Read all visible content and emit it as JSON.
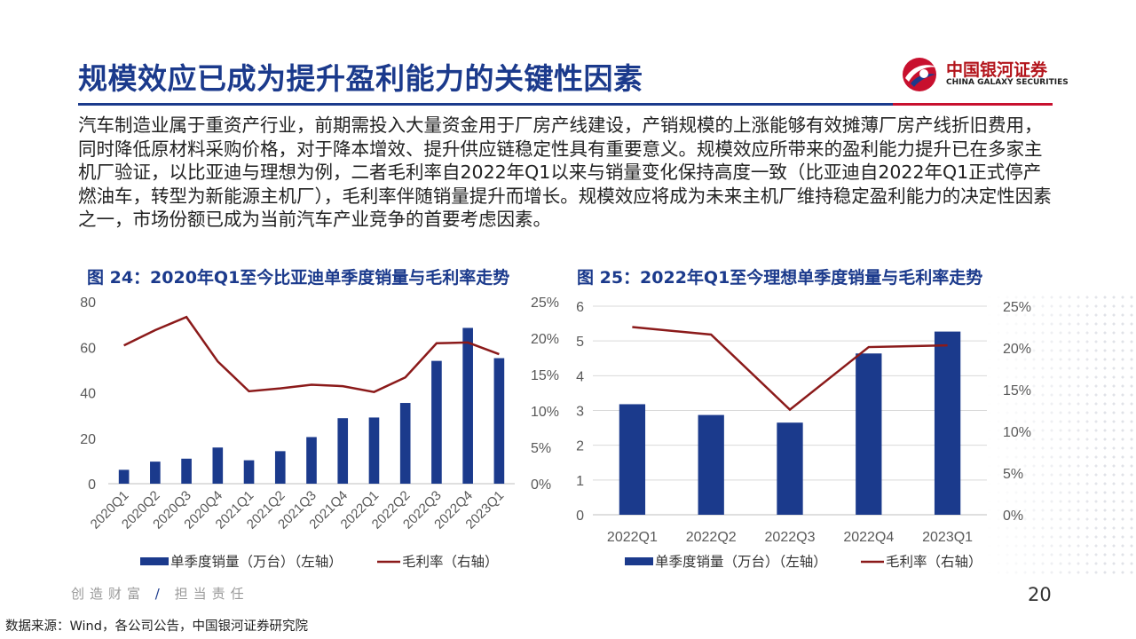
{
  "header": {
    "title": "规模效应已成为提升盈利能力的关键性因素",
    "logo_cn": "中国银河证券",
    "logo_en": "CHINA GALAXY SECURITIES"
  },
  "paragraph": "汽车制造业属于重资产行业，前期需投入大量资金用于厂房产线建设，产销规模的上涨能够有效摊薄厂房产线折旧费用，同时降低原材料采购价格，对于降本增效、提升供应链稳定性具有重要意义。规模效应所带来的盈利能力提升已在多家主机厂验证，以比亚迪与理想为例，二者毛利率自2022年Q1以来与销量变化保持高度一致（比亚迪自2022年Q1正式停产燃油车，转型为新能源主机厂），毛利率伴随销量提升而增长。规模效应将成为未来主机厂维持稳定盈利能力的决定性因素之一，市场份额已成为当前汽车产业竞争的首要考虑因素。",
  "footer": {
    "slogan_left": "创造财富",
    "slogan_slash": "/",
    "slogan_right": "担当责任",
    "page_number": "20",
    "source": "数据来源：Wind，各公司公告，中国银河证券研究院"
  },
  "colors": {
    "bar": "#1b3a8c",
    "line": "#8b1a1a",
    "title_blue": "#1b3a8c",
    "accent_red": "#c8102e",
    "axis_text": "#595959"
  },
  "chart_data": [
    {
      "type": "bar",
      "title": "图 24：2020年Q1至今比亚迪单季度销量与毛利率走势",
      "categories": [
        "2020Q1",
        "2020Q2",
        "2020Q3",
        "2020Q4",
        "2021Q1",
        "2021Q2",
        "2021Q3",
        "2021Q4",
        "2022Q1",
        "2022Q2",
        "2022Q3",
        "2022Q4",
        "2023Q1"
      ],
      "series": [
        {
          "name": "单季度销量（万台）（左轴）",
          "type": "bar",
          "axis": "left",
          "values": [
            6.1,
            9.7,
            11.0,
            15.9,
            10.3,
            14.3,
            20.5,
            28.8,
            29.1,
            35.5,
            54.0,
            68.5,
            55.2
          ]
        },
        {
          "name": "毛利率（右轴）",
          "type": "line",
          "axis": "right",
          "values": [
            0.19,
            0.211,
            0.229,
            0.168,
            0.127,
            0.131,
            0.136,
            0.134,
            0.126,
            0.146,
            0.193,
            0.194,
            0.178
          ]
        }
      ],
      "y_left": {
        "range": [
          0,
          80
        ],
        "ticks": [
          "0",
          "20",
          "40",
          "60",
          "80"
        ]
      },
      "y_right": {
        "range": [
          0,
          0.25
        ],
        "ticks": [
          "0%",
          "5%",
          "10%",
          "15%",
          "20%",
          "25%"
        ]
      },
      "x_labels_rotated": true,
      "legend_position": "bottom",
      "grid": false
    },
    {
      "type": "bar",
      "title": "图 25：2022年Q1至今理想单季度销量与毛利率走势",
      "categories": [
        "2022Q1",
        "2022Q2",
        "2022Q3",
        "2022Q4",
        "2023Q1"
      ],
      "series": [
        {
          "name": "单季度销量（万台）（左轴）",
          "type": "bar",
          "axis": "left",
          "values": [
            3.18,
            2.87,
            2.65,
            4.64,
            5.27
          ]
        },
        {
          "name": "毛利率（右轴）",
          "type": "line",
          "axis": "right",
          "values": [
            0.225,
            0.216,
            0.126,
            0.201,
            0.203
          ]
        }
      ],
      "y_left": {
        "range": [
          0,
          6
        ],
        "ticks": [
          "0",
          "1",
          "2",
          "3",
          "4",
          "5",
          "6"
        ]
      },
      "y_right": {
        "range": [
          0,
          0.25
        ],
        "ticks": [
          "0%",
          "5%",
          "10%",
          "15%",
          "20%",
          "25%"
        ]
      },
      "x_labels_rotated": false,
      "legend_position": "bottom",
      "grid": true
    }
  ]
}
